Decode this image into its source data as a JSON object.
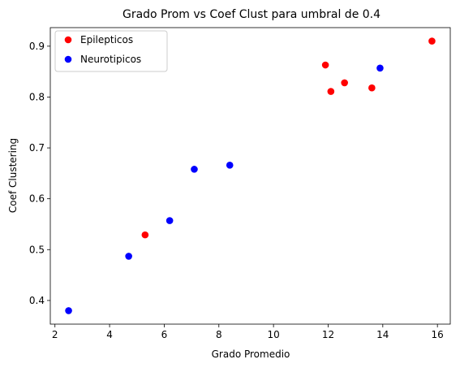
{
  "chart_data": {
    "type": "scatter",
    "title": "Grado Prom vs Coef Clust para umbral de 0.4",
    "xlabel": "Grado Promedio",
    "ylabel": "Coef Clustering",
    "xlim": [
      1.83,
      16.47
    ],
    "ylim": [
      0.3535,
      0.9365
    ],
    "xticks": [
      2,
      4,
      6,
      8,
      10,
      12,
      14,
      16
    ],
    "yticks": [
      0.4,
      0.5,
      0.6,
      0.7,
      0.8,
      0.9
    ],
    "legend_position": "upper-left",
    "grid": false,
    "series": [
      {
        "name": "Epilepticos",
        "color": "#ff0000",
        "points": [
          {
            "x": 5.3,
            "y": 0.529
          },
          {
            "x": 11.9,
            "y": 0.863
          },
          {
            "x": 12.1,
            "y": 0.811
          },
          {
            "x": 12.6,
            "y": 0.828
          },
          {
            "x": 13.6,
            "y": 0.818
          },
          {
            "x": 15.8,
            "y": 0.91
          }
        ]
      },
      {
        "name": "Neurotipicos",
        "color": "#0000ff",
        "points": [
          {
            "x": 2.5,
            "y": 0.38
          },
          {
            "x": 4.7,
            "y": 0.487
          },
          {
            "x": 6.2,
            "y": 0.557
          },
          {
            "x": 7.1,
            "y": 0.658
          },
          {
            "x": 8.4,
            "y": 0.666
          },
          {
            "x": 13.9,
            "y": 0.857
          }
        ]
      }
    ]
  }
}
